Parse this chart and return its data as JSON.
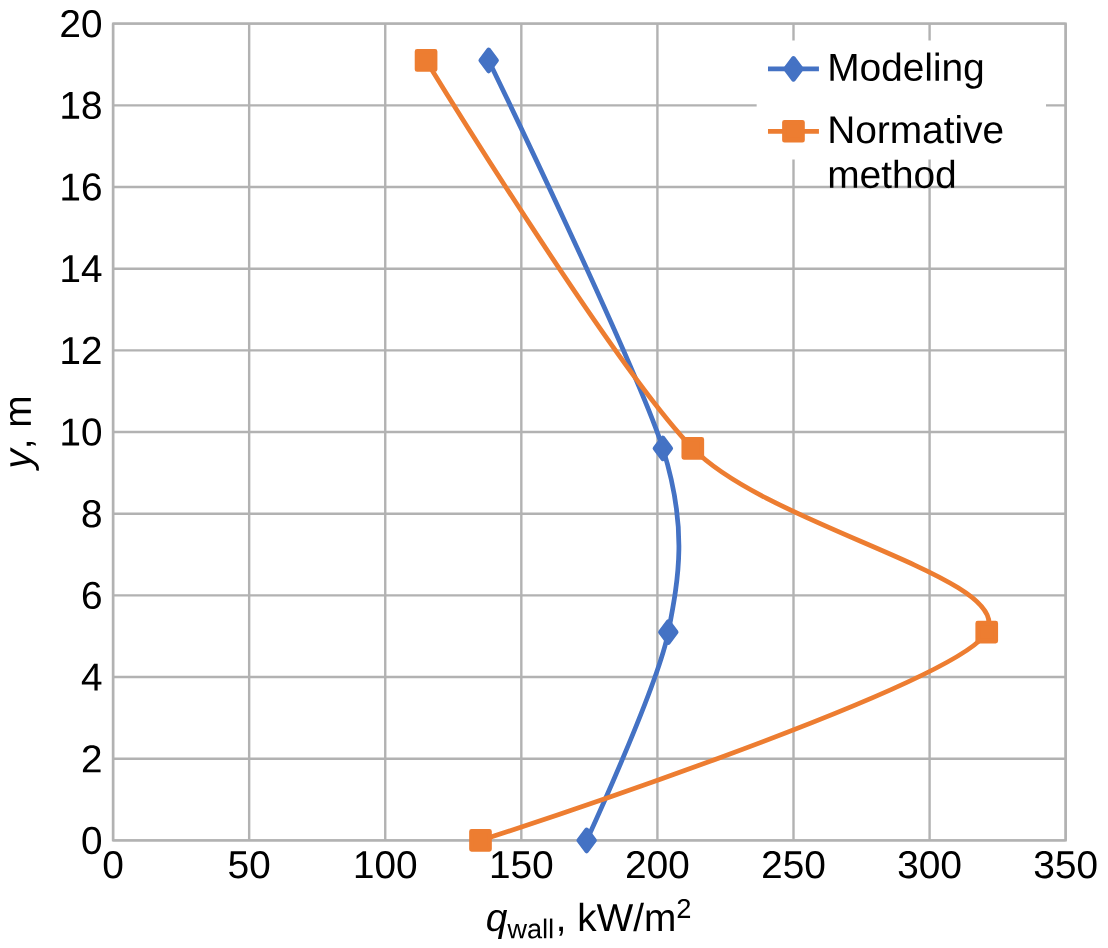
{
  "chart_data": {
    "type": "line",
    "xlabel": "*q*$_{wall}$, kW/m$^{2}$",
    "ylabel": "*y*, m",
    "series": [
      {
        "name": "Modeling",
        "color": "#4472c4",
        "marker": "diamond",
        "x": [
          138,
          202,
          204,
          174
        ],
        "values": [
          19.1,
          9.6,
          5.1,
          0
        ]
      },
      {
        "name": "Normative method",
        "color": "#ed7d31",
        "marker": "square",
        "x": [
          115,
          213,
          321,
          135
        ],
        "values": [
          19.1,
          9.6,
          5.1,
          0
        ]
      }
    ],
    "xlim": [
      0,
      350
    ],
    "xticks": [
      0,
      50,
      100,
      150,
      200,
      250,
      300,
      350
    ],
    "ylim": [
      0,
      20
    ],
    "yticks": [
      0,
      2,
      4,
      6,
      8,
      10,
      12,
      14,
      16,
      18,
      20
    ],
    "grid": true,
    "legend": "top right"
  }
}
